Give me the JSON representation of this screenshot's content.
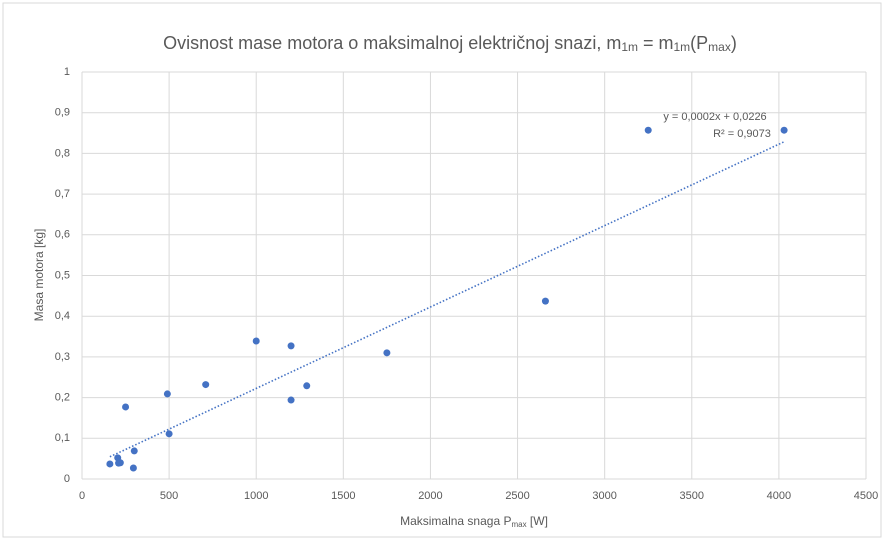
{
  "chart_data": {
    "type": "scatter",
    "title": [
      "Ovisnost mase motora o maksimalnoj električnoj snazi, m",
      "1m",
      " = m",
      "1m",
      "(P",
      "max",
      ")"
    ],
    "x_label": [
      "Maksimalna snaga P",
      "max",
      " [W]"
    ],
    "y_label": "Masa motora [kg]",
    "color": "#4472c4",
    "x": [
      160,
      205,
      210,
      220,
      250,
      295,
      300,
      490,
      500,
      710,
      1000,
      1200,
      1200,
      1290,
      1750,
      2660,
      3250,
      4030
    ],
    "y": [
      0.037,
      0.052,
      0.039,
      0.04,
      0.177,
      0.027,
      0.069,
      0.209,
      0.111,
      0.232,
      0.339,
      0.327,
      0.194,
      0.229,
      0.31,
      0.437,
      0.857,
      0.857
    ],
    "xlim": [
      0,
      4500
    ],
    "xticks": [
      0,
      500,
      1000,
      1500,
      2000,
      2500,
      3000,
      3500,
      4000,
      4500
    ],
    "ylim": [
      0,
      1
    ],
    "yticks": [
      0,
      {
        "value": 0.1,
        "label": "0,1"
      },
      {
        "value": 0.2,
        "label": "0,2"
      },
      {
        "value": 0.3,
        "label": "0,3"
      },
      {
        "value": 0.4,
        "label": "0,4"
      },
      {
        "value": 0.5,
        "label": "0,5"
      },
      {
        "value": 0.6,
        "label": "0,6"
      },
      {
        "value": 0.7,
        "label": "0,7"
      },
      {
        "value": 0.8,
        "label": "0,8"
      },
      {
        "value": 0.9,
        "label": "0,9"
      },
      1
    ],
    "grid": true,
    "trendline": {
      "slope": 0.0002,
      "intercept": 0.0226,
      "equation": "y = 0,0002x + 0,0226",
      "r_squared": "R² = 0,9073"
    }
  }
}
